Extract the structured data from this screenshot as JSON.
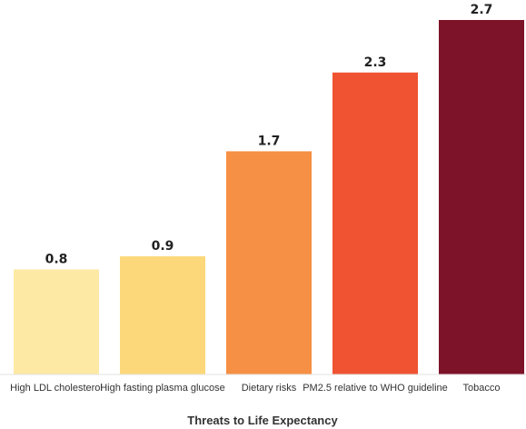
{
  "chart_data": {
    "type": "bar",
    "title": "",
    "xlabel": "Threats to Life Expectancy",
    "ylabel": "",
    "ylim": [
      0,
      2.7
    ],
    "grid": false,
    "categories": [
      "High LDL cholesterol",
      "High fasting plasma glucose",
      "Dietary risks",
      "PM2.5 relative to WHO guideline",
      "Tobacco"
    ],
    "values": [
      0.8,
      0.9,
      1.7,
      2.3,
      2.7
    ],
    "value_labels": [
      "0.8",
      "0.9",
      "1.7",
      "2.3",
      "2.7"
    ],
    "colors": [
      "#fde9a3",
      "#fcd87a",
      "#f59044",
      "#ef5332",
      "#7d1329"
    ]
  }
}
